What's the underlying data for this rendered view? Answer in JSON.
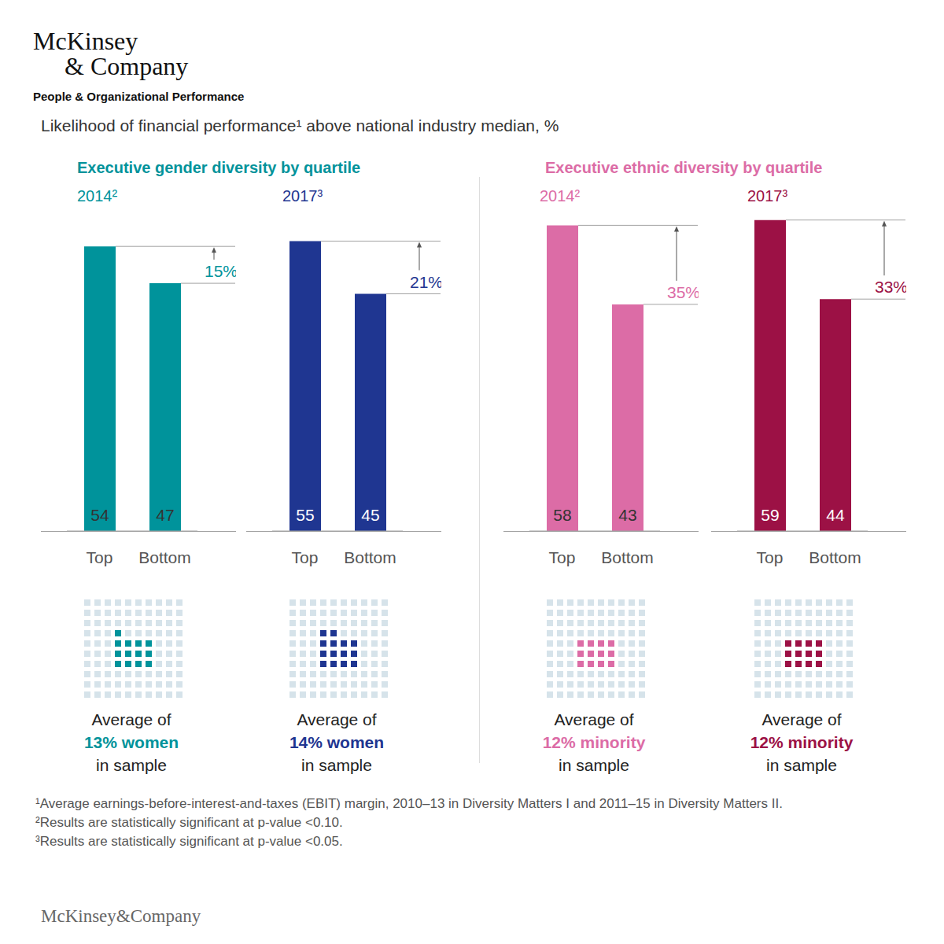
{
  "header": {
    "logo": [
      "McKinsey",
      "& Company"
    ],
    "practice": "People & Organizational Performance",
    "title": "Likelihood of financial performance¹ above national industry median, %"
  },
  "groups": [
    {
      "title": "Executive gender diversity by quartile",
      "color": "#00939b"
    },
    {
      "title": "Executive ethnic diversity by quartile",
      "color": "#dc6ca6"
    }
  ],
  "chart_data": [
    {
      "type": "bar",
      "title": "2014²",
      "categories": [
        "Top",
        "Bottom"
      ],
      "values": [
        54,
        47
      ],
      "color": "#00939b",
      "ylim": [
        0,
        60
      ],
      "yticks": [
        0,
        60
      ],
      "grid": false,
      "data_labels": true,
      "tick_labels": "x",
      "annotation": "15%",
      "sample_share": 13,
      "caption": [
        "Average of",
        "13% women",
        "in sample"
      ]
    },
    {
      "type": "bar",
      "title": "2017³",
      "categories": [
        "Top",
        "Bottom"
      ],
      "values": [
        55,
        45
      ],
      "color": "#1f3691",
      "ylim": [
        0,
        60
      ],
      "yticks": [
        0,
        60
      ],
      "grid": false,
      "data_labels": true,
      "tick_labels": "x",
      "annotation": "21%",
      "sample_share": 14,
      "caption": [
        "Average of",
        "14% women",
        "in sample"
      ]
    },
    {
      "type": "bar",
      "title": "2014²",
      "categories": [
        "Top",
        "Bottom"
      ],
      "values": [
        58,
        43
      ],
      "color": "#dc6ca6",
      "ylim": [
        0,
        60
      ],
      "yticks": [
        0,
        60
      ],
      "grid": false,
      "data_labels": true,
      "tick_labels": "x",
      "annotation": "35%",
      "sample_share": 12,
      "caption": [
        "Average of",
        "12% minority",
        "in sample"
      ]
    },
    {
      "type": "bar",
      "title": "2017³",
      "categories": [
        "Top",
        "Bottom"
      ],
      "values": [
        59,
        44
      ],
      "color": "#9c1145",
      "ylim": [
        0,
        60
      ],
      "yticks": [
        0,
        60
      ],
      "grid": false,
      "data_labels": true,
      "tick_labels": "x",
      "annotation": "33%",
      "sample_share": 12,
      "caption": [
        "Average of",
        "12% minority",
        "in sample"
      ]
    }
  ],
  "footnotes": [
    "¹Average earnings-before-interest-and-taxes (EBIT) margin, 2010–13 in Diversity Matters I and 2011–15 in Diversity Matters II.",
    "²Results are statistically significant at p-value <0.10.",
    "³Results are statistically significant at p-value <0.05."
  ],
  "footer": "McKinsey&Company"
}
